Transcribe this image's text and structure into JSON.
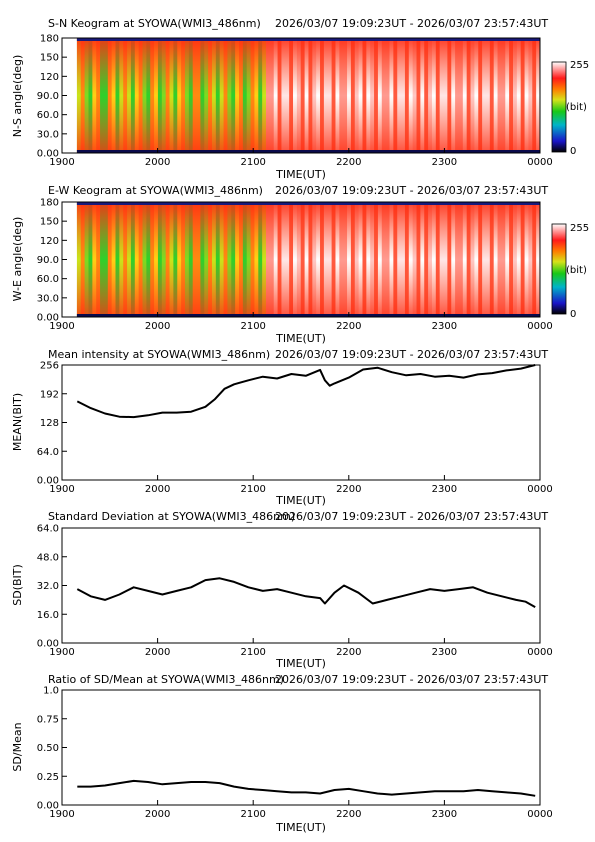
{
  "time_range_text": "2026/03/07 19:09:23UT - 2026/03/07 23:57:43UT",
  "x_axis": {
    "label": "TIME(UT)",
    "ticks": [
      "1900",
      "2000",
      "2100",
      "2200",
      "2300",
      "0000"
    ]
  },
  "colorbar": {
    "max_label": "255",
    "unit_label": "(bit)",
    "min_label": "0"
  },
  "colors": {
    "line": "#000000",
    "keogram_low": "#00cc33",
    "keogram_mid": "#ff3a1a",
    "keogram_high": "#ffffff"
  },
  "chart_data": [
    {
      "type": "heatmap",
      "title": "S-N Keogram at SYOWA(WMI3_486nm)",
      "ylabel": "N-S angle(deg)",
      "yticks": [
        "0.00",
        "30.0",
        "60.0",
        "90.0",
        "120",
        "150",
        "180"
      ],
      "ylim": [
        0,
        180
      ],
      "xlim": [
        19.156,
        24.0
      ],
      "clim": [
        0,
        255
      ],
      "description_values": {
        "early_intensity": 150,
        "late_intensity": 235
      }
    },
    {
      "type": "heatmap",
      "title": "E-W Keogram at SYOWA(WMI3_486nm)",
      "ylabel": "W-E angle(deg)",
      "yticks": [
        "0.00",
        "30.0",
        "60.0",
        "90.0",
        "120",
        "150",
        "180"
      ],
      "ylim": [
        0,
        180
      ],
      "xlim": [
        19.156,
        24.0
      ],
      "clim": [
        0,
        255
      ],
      "description_values": {
        "early_intensity": 150,
        "late_intensity": 235
      }
    },
    {
      "type": "line",
      "title": "Mean intensity at SYOWA(WMI3_486nm)",
      "ylabel": "MEAN(BIT)",
      "yticks": [
        "0.00",
        "64.0",
        "128",
        "192",
        "256"
      ],
      "ylim": [
        0,
        256
      ],
      "x": [
        19.16,
        19.3,
        19.45,
        19.6,
        19.75,
        19.9,
        20.05,
        20.2,
        20.35,
        20.5,
        20.6,
        20.7,
        20.8,
        20.95,
        21.1,
        21.25,
        21.4,
        21.55,
        21.7,
        21.75,
        21.8,
        21.85,
        22.0,
        22.15,
        22.3,
        22.45,
        22.6,
        22.75,
        22.9,
        23.05,
        23.2,
        23.35,
        23.5,
        23.65,
        23.8,
        23.95
      ],
      "y": [
        175,
        160,
        148,
        141,
        140,
        144,
        150,
        150,
        152,
        163,
        180,
        203,
        213,
        222,
        230,
        226,
        236,
        232,
        245,
        222,
        210,
        215,
        228,
        246,
        250,
        240,
        233,
        236,
        230,
        232,
        228,
        235,
        238,
        244,
        248,
        256
      ]
    },
    {
      "type": "line",
      "title": "Standard Deviation at SYOWA(WMI3_486nm)",
      "ylabel": "SD(BIT)",
      "yticks": [
        "0.00",
        "16.0",
        "32.0",
        "48.0",
        "64.0"
      ],
      "ylim": [
        0,
        64
      ],
      "x": [
        19.16,
        19.3,
        19.45,
        19.6,
        19.75,
        19.9,
        20.05,
        20.2,
        20.35,
        20.5,
        20.65,
        20.8,
        20.95,
        21.1,
        21.25,
        21.4,
        21.55,
        21.7,
        21.75,
        21.85,
        21.95,
        22.1,
        22.25,
        22.4,
        22.55,
        22.7,
        22.85,
        23.0,
        23.15,
        23.3,
        23.45,
        23.6,
        23.75,
        23.85,
        23.95
      ],
      "y": [
        30,
        26,
        24,
        27,
        31,
        29,
        27,
        29,
        31,
        35,
        36,
        34,
        31,
        29,
        30,
        28,
        26,
        25,
        22,
        28,
        32,
        28,
        22,
        24,
        26,
        28,
        30,
        29,
        30,
        31,
        28,
        26,
        24,
        23,
        20
      ]
    },
    {
      "type": "line",
      "title": "Ratio of SD/Mean at SYOWA(WMI3_486nm)",
      "ylabel": "SD/Mean",
      "yticks": [
        "0.00",
        "0.25",
        "0.50",
        "0.75",
        "1.0"
      ],
      "ylim": [
        0,
        1
      ],
      "x": [
        19.16,
        19.3,
        19.45,
        19.6,
        19.75,
        19.9,
        20.05,
        20.2,
        20.35,
        20.5,
        20.65,
        20.8,
        20.95,
        21.1,
        21.25,
        21.4,
        21.55,
        21.7,
        21.85,
        22.0,
        22.15,
        22.3,
        22.45,
        22.6,
        22.75,
        22.9,
        23.05,
        23.2,
        23.35,
        23.5,
        23.65,
        23.8,
        23.95
      ],
      "y": [
        0.16,
        0.16,
        0.17,
        0.19,
        0.21,
        0.2,
        0.18,
        0.19,
        0.2,
        0.2,
        0.19,
        0.16,
        0.14,
        0.13,
        0.12,
        0.11,
        0.11,
        0.1,
        0.13,
        0.14,
        0.12,
        0.1,
        0.09,
        0.1,
        0.11,
        0.12,
        0.12,
        0.12,
        0.13,
        0.12,
        0.11,
        0.1,
        0.08
      ]
    }
  ]
}
